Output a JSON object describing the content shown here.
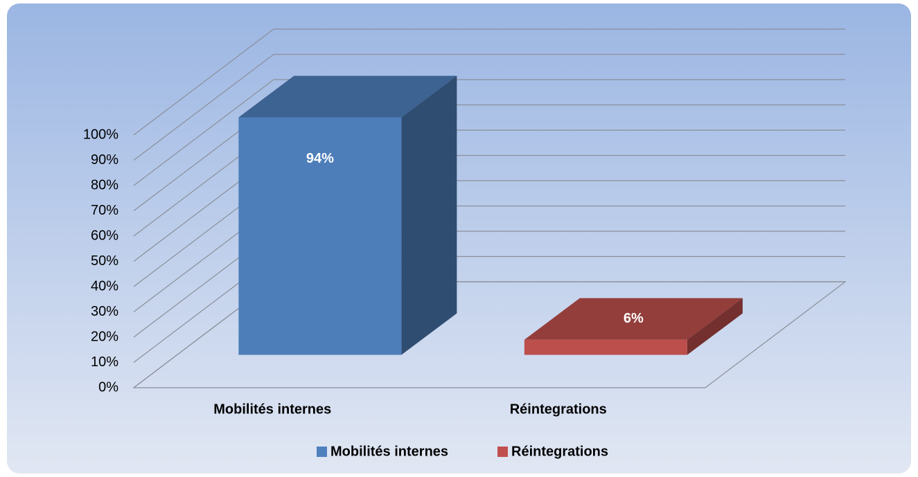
{
  "chart_data": {
    "type": "bar3d",
    "categories": [
      "Mobilités internes",
      "Réintegrations"
    ],
    "values": [
      94,
      6
    ],
    "value_labels": [
      "94%",
      "6%"
    ],
    "colors": [
      "#4f81bd",
      "#c0504d"
    ],
    "ylim": [
      0,
      100
    ],
    "yticks": [
      {
        "value": 0,
        "label": "0%"
      },
      {
        "value": 10,
        "label": "10%"
      },
      {
        "value": 20,
        "label": "20%"
      },
      {
        "value": 30,
        "label": "30%"
      },
      {
        "value": 40,
        "label": "40%"
      },
      {
        "value": 50,
        "label": "50%"
      },
      {
        "value": 60,
        "label": "60%"
      },
      {
        "value": 70,
        "label": "70%"
      },
      {
        "value": 80,
        "label": "80%"
      },
      {
        "value": 90,
        "label": "90%"
      },
      {
        "value": 100,
        "label": "100%"
      }
    ],
    "grid": true,
    "legend": "bottom"
  }
}
